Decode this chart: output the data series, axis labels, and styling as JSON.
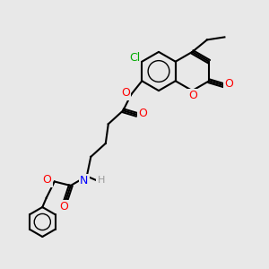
{
  "bg_color": "#e8e8e8",
  "bond_color": "#000000",
  "bond_width": 1.5,
  "atom_colors": {
    "O": "#ff0000",
    "N": "#0000ff",
    "Cl": "#00aa00",
    "H": "#999999",
    "C": "#000000"
  },
  "font_size": 8,
  "figsize": [
    3.0,
    3.0
  ],
  "dpi": 100
}
